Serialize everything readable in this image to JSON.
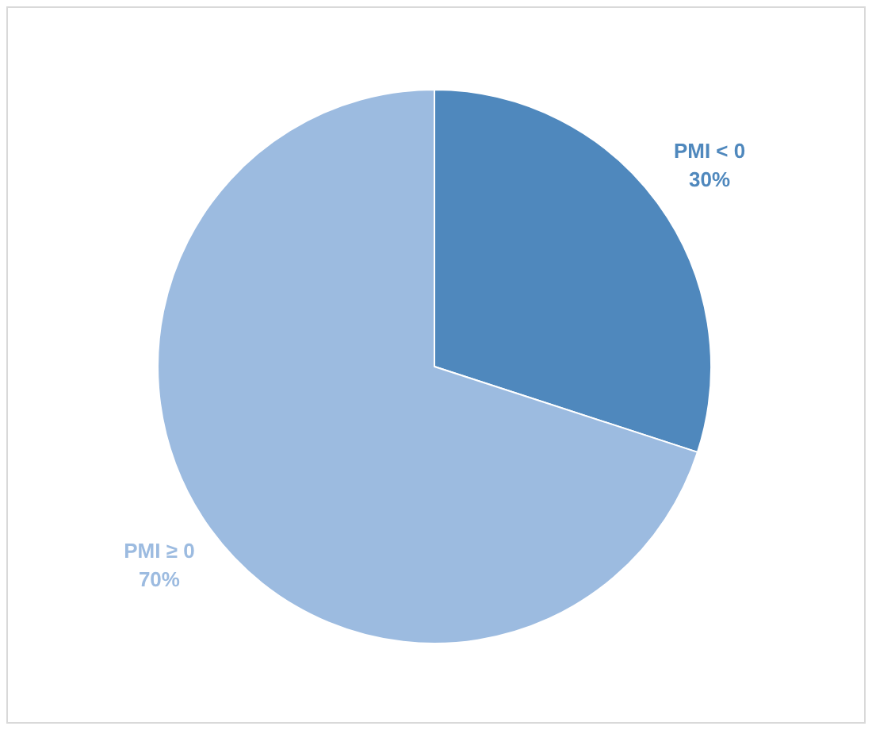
{
  "chart_data": {
    "type": "pie",
    "categories": [
      "PMI < 0",
      "PMI ≥ 0"
    ],
    "values": [
      30,
      70
    ],
    "colors": [
      "#4f88bd",
      "#9cbbe0"
    ],
    "value_labels": [
      "30%",
      "70%"
    ],
    "legend": false
  }
}
